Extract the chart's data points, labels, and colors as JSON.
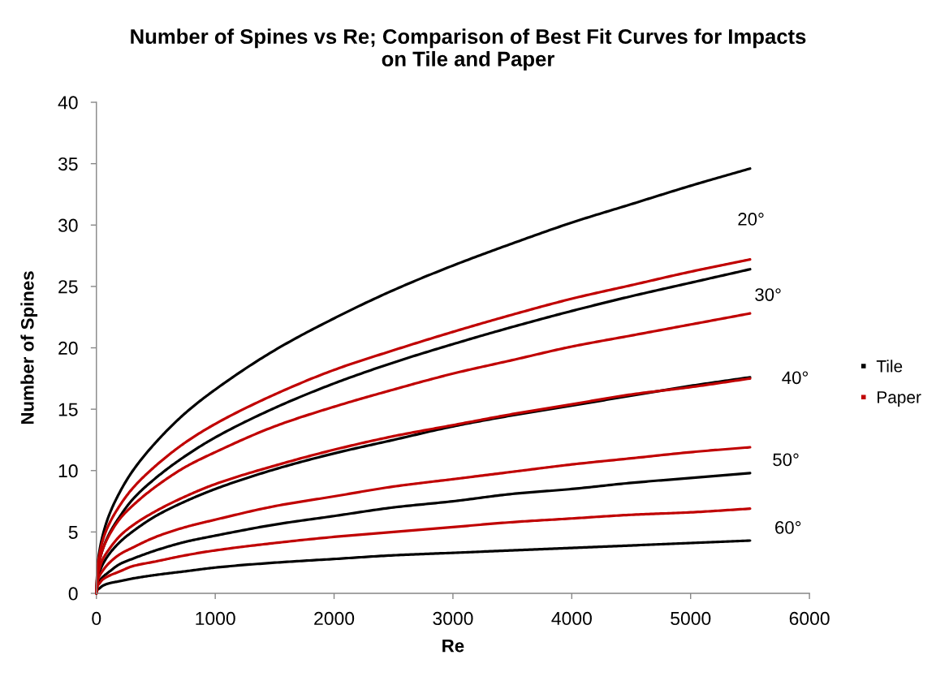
{
  "chart_data": {
    "type": "line",
    "title": "Number of Spines vs Re; Comparison of Best Fit Curves for Impacts\non Tile and Paper",
    "xlabel": "Re",
    "ylabel": "Number of Spines",
    "x": [
      0,
      10,
      25,
      50,
      100,
      200,
      300,
      500,
      750,
      1000,
      1500,
      2000,
      2500,
      3000,
      3500,
      4000,
      4500,
      5000,
      5500
    ],
    "series": [
      {
        "name": "Tile",
        "color": "#000000",
        "values": [
          0,
          2.3,
          3.4,
          4.6,
          6.2,
          8.3,
          9.9,
          12.3,
          14.7,
          16.6,
          19.8,
          22.4,
          24.7,
          26.7,
          28.5,
          30.2,
          31.7,
          33.2,
          34.6
        ]
      },
      {
        "color": "#000000",
        "values": [
          0,
          1.8,
          2.6,
          3.5,
          4.7,
          6.3,
          7.6,
          9.4,
          11.2,
          12.7,
          15.1,
          17.1,
          18.8,
          20.3,
          21.7,
          23.0,
          24.2,
          25.3,
          26.4
        ]
      },
      {
        "color": "#000000",
        "values": [
          0,
          1.2,
          1.7,
          2.3,
          3.1,
          4.2,
          5.0,
          6.3,
          7.5,
          8.5,
          10.1,
          11.4,
          12.5,
          13.6,
          14.5,
          15.3,
          16.1,
          16.9,
          17.6
        ]
      },
      {
        "color": "#000000",
        "values": [
          0,
          0.7,
          1.0,
          1.3,
          1.7,
          2.4,
          2.8,
          3.5,
          4.2,
          4.7,
          5.6,
          6.3,
          7.0,
          7.5,
          8.1,
          8.5,
          9.0,
          9.4,
          9.8
        ]
      },
      {
        "color": "#000000",
        "values": [
          0,
          0.3,
          0.4,
          0.6,
          0.8,
          1.0,
          1.2,
          1.5,
          1.8,
          2.1,
          2.5,
          2.8,
          3.1,
          3.3,
          3.5,
          3.7,
          3.9,
          4.1,
          4.3
        ]
      },
      {
        "name": "Paper",
        "color": "#c00000",
        "values": [
          0,
          2.2,
          3.1,
          4.2,
          5.5,
          7.2,
          8.5,
          10.4,
          12.3,
          13.8,
          16.2,
          18.2,
          19.8,
          21.3,
          22.7,
          24.0,
          25.1,
          26.2,
          27.2
        ]
      },
      {
        "color": "#c00000",
        "values": [
          0,
          1.8,
          2.6,
          3.5,
          4.6,
          6.1,
          7.1,
          8.7,
          10.3,
          11.5,
          13.6,
          15.2,
          16.6,
          17.9,
          19.0,
          20.1,
          21.0,
          21.9,
          22.8
        ]
      },
      {
        "color": "#c00000",
        "values": [
          0,
          1.4,
          2.0,
          2.7,
          3.5,
          4.7,
          5.5,
          6.7,
          7.9,
          8.9,
          10.4,
          11.7,
          12.8,
          13.7,
          14.6,
          15.4,
          16.2,
          16.8,
          17.5
        ]
      },
      {
        "color": "#c00000",
        "values": [
          0,
          1.0,
          1.4,
          1.8,
          2.4,
          3.2,
          3.7,
          4.6,
          5.4,
          6.0,
          7.1,
          7.9,
          8.7,
          9.3,
          9.9,
          10.5,
          11.0,
          11.5,
          11.9
        ]
      },
      {
        "color": "#c00000",
        "values": [
          0,
          0.6,
          0.8,
          1.1,
          1.4,
          1.8,
          2.2,
          2.6,
          3.1,
          3.5,
          4.1,
          4.6,
          5.0,
          5.4,
          5.8,
          6.1,
          6.4,
          6.6,
          6.9
        ]
      }
    ],
    "xlim": [
      0,
      6000
    ],
    "xticks": [
      0,
      1000,
      2000,
      3000,
      4000,
      5000,
      6000
    ],
    "ylim": [
      0,
      40
    ],
    "yticks": [
      0,
      5,
      10,
      15,
      20,
      25,
      30,
      35,
      40
    ],
    "legend": "right",
    "annotations": [
      "20°",
      "30°",
      "40°",
      "50°",
      "60°"
    ]
  }
}
